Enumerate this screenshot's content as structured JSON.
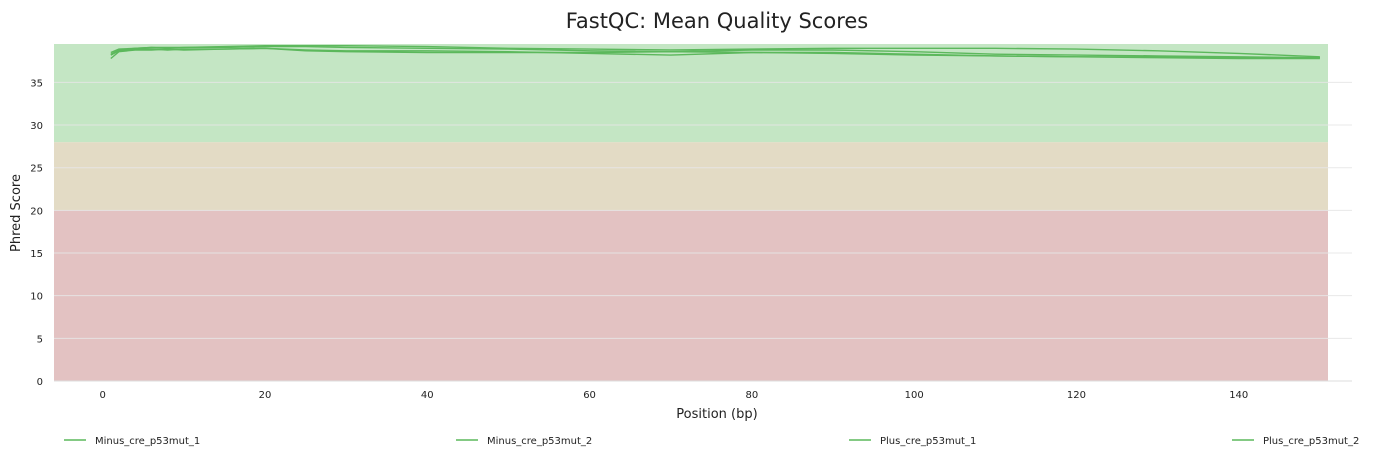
{
  "chart_data": {
    "type": "line",
    "title": "FastQC: Mean Quality Scores",
    "xlabel": "Position (bp)",
    "ylabel": "Phred Score",
    "xlim": [
      -6,
      151
    ],
    "ylim": [
      0,
      39.5
    ],
    "x_ticks": [
      0,
      20,
      40,
      60,
      80,
      100,
      120,
      140
    ],
    "y_ticks": [
      0,
      5,
      10,
      15,
      20,
      25,
      30,
      35
    ],
    "grid": "horizontal",
    "legend_position": "bottom",
    "bands": [
      {
        "from": 0,
        "to": 20,
        "color": "#e3c2c2"
      },
      {
        "from": 20,
        "to": 28,
        "color": "#e3dbc5"
      },
      {
        "from": 28,
        "to": 39.5,
        "color": "#c4e6c4"
      }
    ],
    "line_color": "#5cb85c",
    "series": [
      {
        "name": "Minus_cre_p53mut_1",
        "x": [
          1,
          2,
          4,
          6,
          8,
          10,
          15,
          20,
          25,
          30,
          40,
          50,
          60,
          70,
          80,
          90,
          100,
          110,
          120,
          130,
          140,
          150
        ],
        "y": [
          37.8,
          38.6,
          38.8,
          38.8,
          38.9,
          38.8,
          38.9,
          39.0,
          38.7,
          38.6,
          38.5,
          38.5,
          38.5,
          38.6,
          38.5,
          38.4,
          38.2,
          38.1,
          38.0,
          37.9,
          37.8,
          37.8
        ]
      },
      {
        "name": "Minus_cre_p53mut_2",
        "x": [
          1,
          2,
          4,
          6,
          8,
          10,
          15,
          20,
          25,
          30,
          40,
          50,
          60,
          70,
          80,
          90,
          100,
          110,
          120,
          130,
          140,
          150
        ],
        "y": [
          38.5,
          38.9,
          39.0,
          39.1,
          39.1,
          39.1,
          39.2,
          39.3,
          39.3,
          39.3,
          39.2,
          39.0,
          38.9,
          38.8,
          38.9,
          39.0,
          39.0,
          39.0,
          38.9,
          38.7,
          38.4,
          38.0
        ]
      },
      {
        "name": "Plus_cre_p53mut_1",
        "x": [
          1,
          2,
          4,
          6,
          8,
          10,
          15,
          20,
          25,
          30,
          40,
          50,
          60,
          70,
          80,
          90,
          100,
          110,
          120,
          130,
          140,
          150
        ],
        "y": [
          38.2,
          38.7,
          38.9,
          38.9,
          38.8,
          38.9,
          38.9,
          39.0,
          38.8,
          38.7,
          38.7,
          38.6,
          38.4,
          38.2,
          38.5,
          38.5,
          38.3,
          38.1,
          38.0,
          38.0,
          37.9,
          37.9
        ]
      },
      {
        "name": "Plus_cre_p53mut_2",
        "x": [
          1,
          2,
          4,
          6,
          8,
          10,
          15,
          20,
          25,
          30,
          40,
          50,
          60,
          70,
          80,
          90,
          100,
          110,
          120,
          130,
          140,
          150
        ],
        "y": [
          38.3,
          38.8,
          39.0,
          39.1,
          39.0,
          39.1,
          39.1,
          39.2,
          39.2,
          39.1,
          39.0,
          38.9,
          38.7,
          38.6,
          38.8,
          38.8,
          38.6,
          38.3,
          38.2,
          38.1,
          38.0,
          37.9
        ]
      }
    ]
  }
}
